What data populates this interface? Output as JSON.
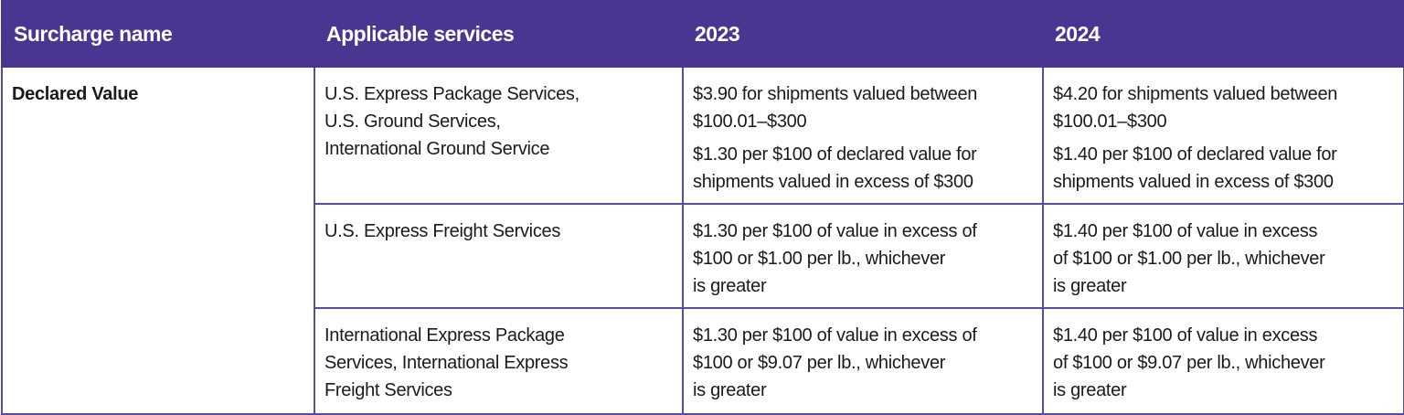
{
  "table": {
    "header": [
      "Surcharge name",
      "Applicable services",
      "2023",
      "2024"
    ],
    "surcharge_name": "Declared Value",
    "rows": [
      {
        "services": [
          "U.S. Express Package Services,",
          "U.S. Ground Services,",
          "International Ground Service"
        ],
        "y2023": [
          [
            "$3.90 for shipments valued between",
            "$100.01–$300"
          ],
          [
            "$1.30 per $100 of declared value for",
            "shipments valued in excess of $300"
          ]
        ],
        "y2024": [
          [
            "$4.20 for shipments valued between",
            "$100.01–$300"
          ],
          [
            "$1.40 per $100 of declared value for",
            "shipments valued in excess of $300"
          ]
        ]
      },
      {
        "services": [
          "U.S. Express Freight Services"
        ],
        "y2023": [
          [
            "$1.30 per $100 of value in excess of",
            "$100 or $1.00 per lb., whichever",
            "is greater"
          ]
        ],
        "y2024": [
          [
            "$1.40 per $100 of value in excess",
            "of $100 or $1.00 per lb., whichever",
            "is greater"
          ]
        ]
      },
      {
        "services": [
          "International Express Package",
          "Services, International Express",
          "Freight Services"
        ],
        "y2023": [
          [
            "$1.30 per $100 of value in excess of",
            "$100 or $9.07 per lb., whichever",
            "is greater"
          ]
        ],
        "y2024": [
          [
            "$1.40 per $100 of value in excess",
            "of $100 or $9.07 per lb., whichever",
            "is greater"
          ]
        ]
      }
    ]
  }
}
